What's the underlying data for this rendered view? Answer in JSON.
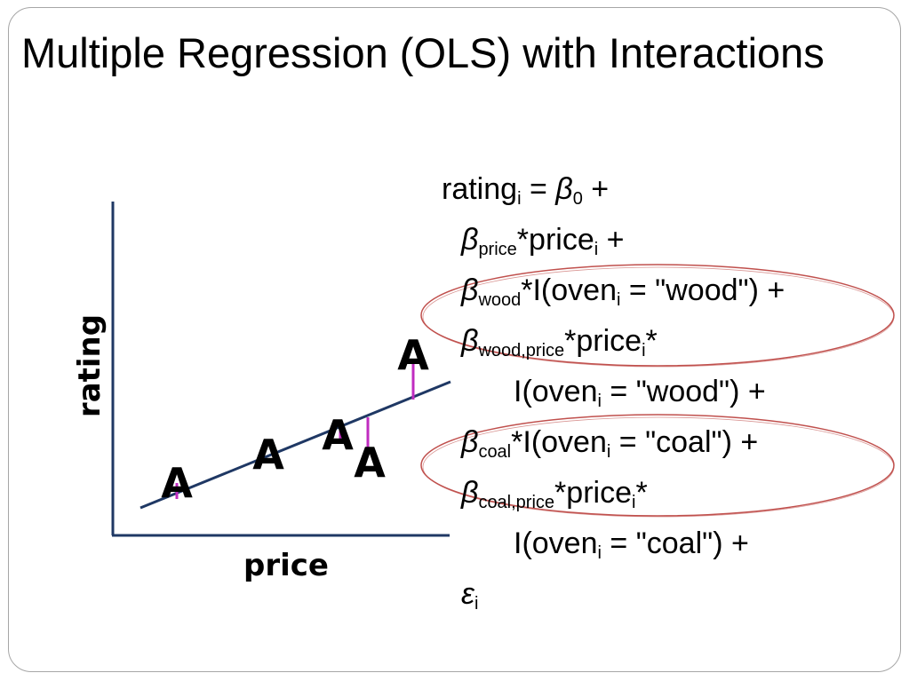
{
  "slide": {
    "title": "Multiple Regression (OLS) with Interactions"
  },
  "plot": {
    "xlabel": "price",
    "ylabel": "rating",
    "marker_label": "A",
    "colors": {
      "axis": "#1f3864",
      "line": "#1f3864",
      "residual": "#c02cc0",
      "ellipse": "#c0504d"
    }
  },
  "equation": {
    "line1": {
      "lhs": "rating",
      "lhs_sub": "i",
      "eq": " = ",
      "beta": "β",
      "beta_sub": "0",
      "tail": " +"
    },
    "line2": {
      "beta": "β",
      "sub": "price",
      "text": "*price",
      "text_sub": "i",
      "tail": " +"
    },
    "line3": {
      "beta": "β",
      "sub": "wood",
      "text": "*I(oven",
      "text_sub": "i",
      "tail": " = \"wood\") +"
    },
    "line4": {
      "beta": "β",
      "sub": "wood,price",
      "text": "*price",
      "text_sub": "i",
      "tail": "*"
    },
    "line5": {
      "text": "I(oven",
      "text_sub": "i",
      "tail": " = \"wood\") +"
    },
    "line6": {
      "beta": "β",
      "sub": "coal",
      "text": "*I(oven",
      "text_sub": "i",
      "tail": " = \"coal\") +"
    },
    "line7": {
      "beta": "β",
      "sub": "coal,price",
      "text": "*price",
      "text_sub": "i",
      "tail": "*"
    },
    "line8": {
      "text": "I(oven",
      "text_sub": "i",
      "tail": " = \"coal\") +"
    },
    "line9": {
      "eps": "ε",
      "eps_sub": "i"
    }
  }
}
